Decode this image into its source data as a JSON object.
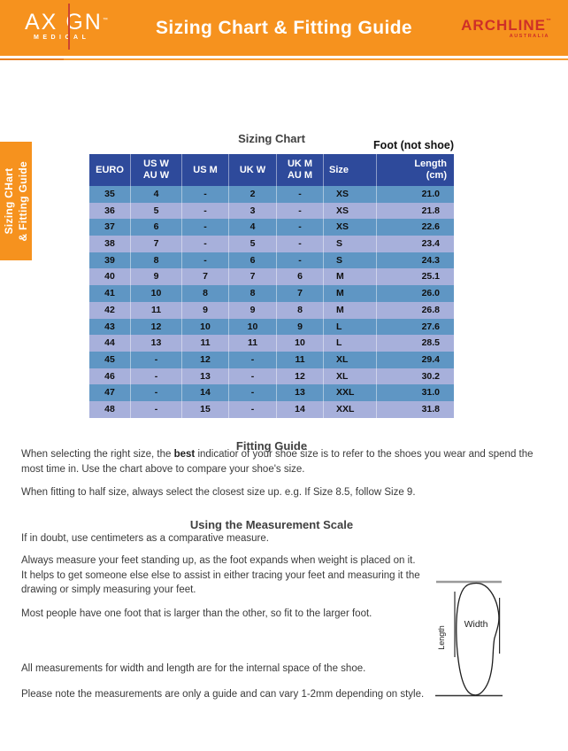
{
  "header": {
    "brand_left": {
      "name_part1": "AX",
      "name_part2": "GN",
      "tm": "™",
      "sub": "MEDICAL"
    },
    "title": "Sizing Chart & Fitting Guide",
    "brand_right": {
      "name": "ARCHLINE",
      "tm": "™",
      "sub": "AUSTRALIA"
    },
    "colors": {
      "band_orange": "#F6921E",
      "archline_red": "#CE2F28",
      "axign_line_red": "#CC4530"
    }
  },
  "side_tab": {
    "line1": "Sizing CHart",
    "line2": "& Fitting Guide"
  },
  "sizing_chart": {
    "title": "Sizing Chart",
    "note": "Foot (not shoe)",
    "columns": [
      [
        "EURO"
      ],
      [
        "US W",
        "AU W"
      ],
      [
        "US M"
      ],
      [
        "UK W"
      ],
      [
        "UK M",
        "AU M"
      ],
      [
        "Size"
      ],
      [
        "Length",
        "(cm)"
      ]
    ],
    "rows": [
      [
        "35",
        "4",
        "-",
        "2",
        "-",
        "XS",
        "21.0"
      ],
      [
        "36",
        "5",
        "-",
        "3",
        "-",
        "XS",
        "21.8"
      ],
      [
        "37",
        "6",
        "-",
        "4",
        "-",
        "XS",
        "22.6"
      ],
      [
        "38",
        "7",
        "-",
        "5",
        "-",
        "S",
        "23.4"
      ],
      [
        "39",
        "8",
        "-",
        "6",
        "-",
        "S",
        "24.3"
      ],
      [
        "40",
        "9",
        "7",
        "7",
        "6",
        "M",
        "25.1"
      ],
      [
        "41",
        "10",
        "8",
        "8",
        "7",
        "M",
        "26.0"
      ],
      [
        "42",
        "11",
        "9",
        "9",
        "8",
        "M",
        "26.8"
      ],
      [
        "43",
        "12",
        "10",
        "10",
        "9",
        "L",
        "27.6"
      ],
      [
        "44",
        "13",
        "11",
        "11",
        "10",
        "L",
        "28.5"
      ],
      [
        "45",
        "-",
        "12",
        "-",
        "11",
        "XL",
        "29.4"
      ],
      [
        "46",
        "-",
        "13",
        "-",
        "12",
        "XL",
        "30.2"
      ],
      [
        "47",
        "-",
        "14",
        "-",
        "13",
        "XXL",
        "31.0"
      ],
      [
        "48",
        "-",
        "15",
        "-",
        "14",
        "XXL",
        "31.8"
      ]
    ],
    "colors": {
      "header_bg": "#2E4A9B",
      "row_blue": "#5F96C4",
      "row_lavender": "#A7B0DB"
    }
  },
  "fitting_guide": {
    "title": "Fitting Guide",
    "para1_pre": "When selecting the right size, the ",
    "para1_bold": "best",
    "para1_post": " indicatior of your shoe size is to refer to the shoes you wear and spend the most time in. Use the chart above to compare your shoe's size.",
    "para2": "When fitting to half size, always select the closest size up. e.g. If Size 8.5, follow Size 9."
  },
  "measurement": {
    "title": "Using the Measurement Scale",
    "para1": "If in doubt, use centimeters as a comparative measure.",
    "para2": "Always measure your feet standing up, as the foot expands when weight is placed on it. It helps to get someone else else to assist in either tracing your feet and measuring it the drawing or simply measuring your feet.",
    "para3": "Most people have one foot that is larger than the other, so fit to the larger foot.",
    "para4": "All measurements for width and length are for the internal space of the shoe.",
    "para5": "Please note the measurements are only a guide and can vary 1-2mm depending on style.",
    "diagram": {
      "width_label": "Width",
      "length_label": "Length"
    }
  }
}
